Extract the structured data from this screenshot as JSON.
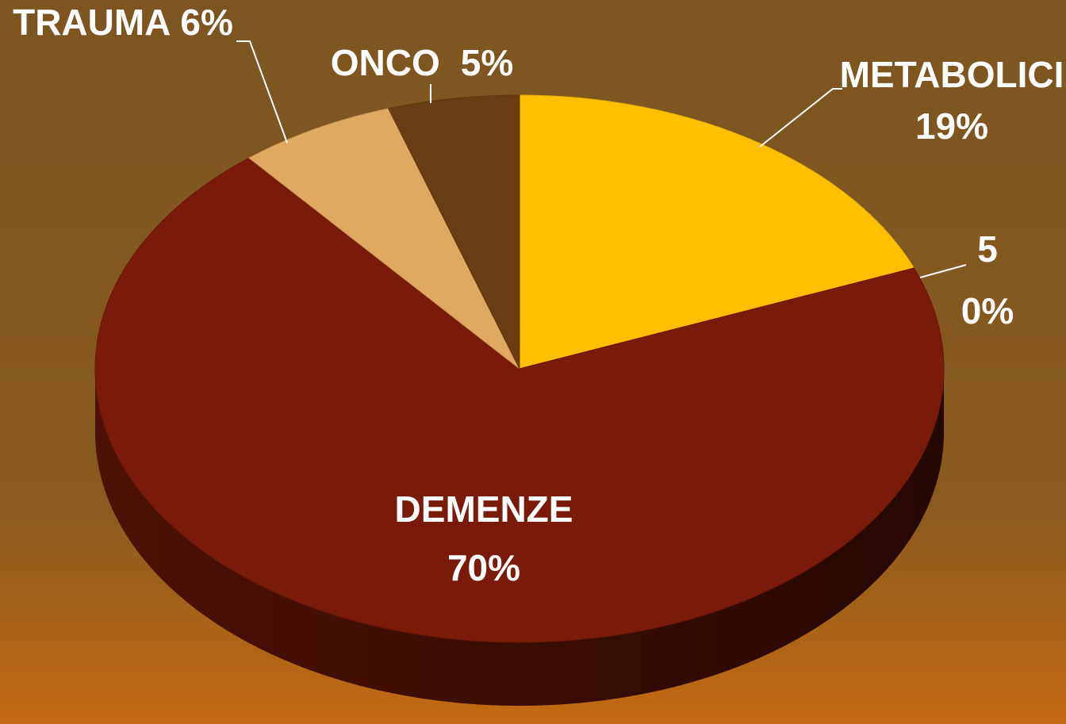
{
  "chart_data": {
    "type": "pie",
    "categories": [
      "METABOLICI",
      "5",
      "DEMENZE",
      "TRAUMA",
      "ONCO"
    ],
    "values": [
      19,
      0,
      70,
      6,
      5
    ],
    "value_labels": [
      "19%",
      "0%",
      "70%",
      "6%",
      "5%"
    ],
    "colors": [
      "#ffc000",
      "#c0504d",
      "#7a1a08",
      "#e0a860",
      "#6b3d12"
    ],
    "three_d": true
  }
}
